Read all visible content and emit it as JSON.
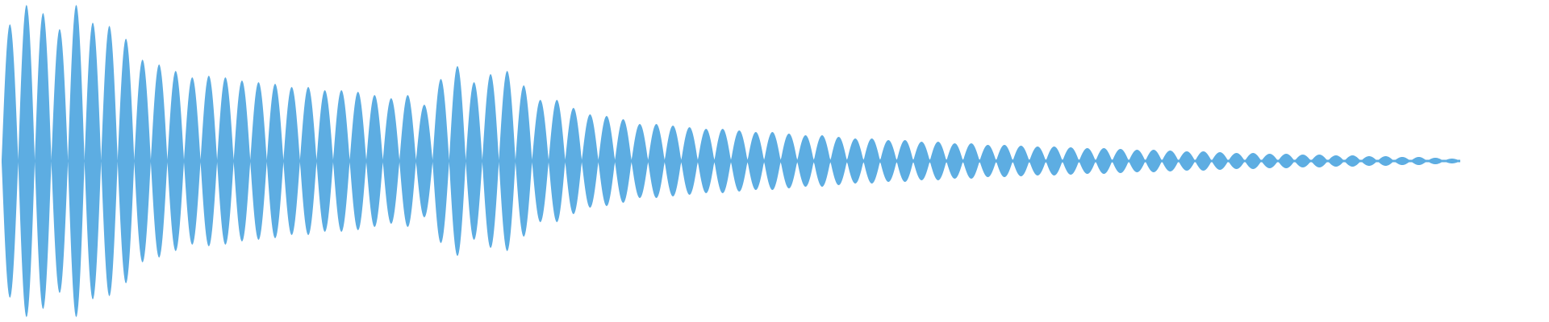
{
  "chart_data": {
    "type": "area",
    "description_of_marks": "",
    "title": "",
    "xlabel": "",
    "ylabel": "",
    "ylim": [
      -1,
      1
    ],
    "grid": false,
    "axes_visible": false,
    "color": "#5dade2",
    "lobe_peak_amplitudes": [
      0.85,
      0.97,
      0.92,
      0.82,
      0.97,
      0.86,
      0.84,
      0.76,
      0.63,
      0.6,
      0.56,
      0.52,
      0.53,
      0.52,
      0.5,
      0.49,
      0.48,
      0.46,
      0.46,
      0.44,
      0.44,
      0.43,
      0.41,
      0.39,
      0.41,
      0.35,
      0.51,
      0.59,
      0.49,
      0.54,
      0.56,
      0.47,
      0.38,
      0.38,
      0.33,
      0.29,
      0.28,
      0.26,
      0.23,
      0.23,
      0.22,
      0.21,
      0.2,
      0.2,
      0.19,
      0.18,
      0.18,
      0.17,
      0.16,
      0.16,
      0.15,
      0.14,
      0.14,
      0.13,
      0.13,
      0.12,
      0.12,
      0.11,
      0.11,
      0.1,
      0.1,
      0.095,
      0.09,
      0.09,
      0.085,
      0.08,
      0.08,
      0.075,
      0.07,
      0.07,
      0.065,
      0.06,
      0.06,
      0.055,
      0.05,
      0.05,
      0.045,
      0.045,
      0.04,
      0.04,
      0.035,
      0.035,
      0.03,
      0.03,
      0.025,
      0.025,
      0.02,
      0.015
    ]
  }
}
